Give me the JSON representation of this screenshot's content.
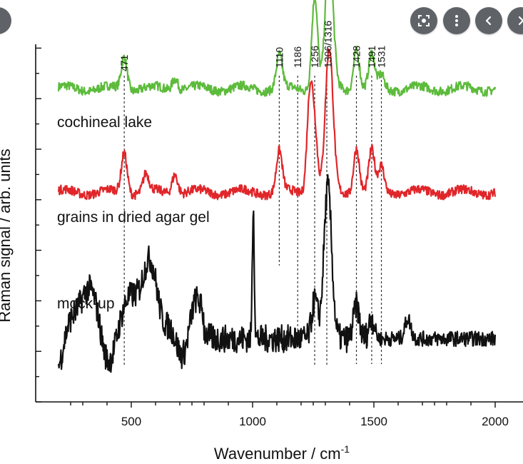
{
  "toolbar": {
    "lens_icon": "lens-search-icon",
    "more_icon": "more-vert-icon",
    "prev_icon": "chevron-left-icon",
    "next_icon": "chevron-right-icon"
  },
  "chart_data": {
    "type": "line",
    "xlabel": "Wavenumber / cm",
    "xlabel_superscript": "-1",
    "ylabel": "Raman signal / arb. units",
    "xlim": [
      70,
      2040
    ],
    "xticks": [
      500,
      1000,
      1500,
      2000
    ],
    "grid": false,
    "peak_markers": [
      471,
      1110,
      1186,
      1256,
      1306,
      1428,
      1491,
      1531
    ],
    "peak_labels": [
      {
        "text": "471",
        "x": 471
      },
      {
        "text": "1110",
        "x": 1110
      },
      {
        "text": "1186",
        "x": 1186
      },
      {
        "text": "1256",
        "x": 1256
      },
      {
        "text": "1306/1316",
        "x": 1311
      },
      {
        "text": "1428",
        "x": 1428
      },
      {
        "text": "1491",
        "x": 1491
      },
      {
        "text": "1531",
        "x": 1531
      }
    ],
    "series": [
      {
        "name": "cochineal lake",
        "color": "#5dbb3c",
        "baseline": 12.4,
        "peaks": [
          [
            471,
            1.3
          ],
          [
            680,
            0.5
          ],
          [
            1110,
            1.3
          ],
          [
            1256,
            3.7
          ],
          [
            1316,
            5.2
          ],
          [
            1428,
            1.6
          ],
          [
            1491,
            1.3
          ],
          [
            1531,
            0.5
          ]
        ]
      },
      {
        "name": "grains in dried agar gel",
        "color": "#e0262a",
        "baseline": 8.3,
        "peaks": [
          [
            471,
            1.6
          ],
          [
            560,
            0.7
          ],
          [
            680,
            0.8
          ],
          [
            1110,
            1.6
          ],
          [
            1236,
            3.8
          ],
          [
            1256,
            2.3
          ],
          [
            1316,
            5.6
          ],
          [
            1428,
            1.8
          ],
          [
            1491,
            1.6
          ],
          [
            1531,
            1.0
          ]
        ]
      },
      {
        "name": "mock-up",
        "color": "#111111",
        "baseline": 2.5,
        "peaks": [
          [
            300,
            1.6
          ],
          [
            500,
            2.5
          ],
          [
            590,
            2.2
          ],
          [
            750,
            1.3
          ],
          [
            1003,
            5.3
          ],
          [
            1256,
            1.5
          ],
          [
            1310,
            6.0
          ],
          [
            1428,
            1.3
          ],
          [
            1491,
            0.8
          ],
          [
            1640,
            0.8
          ]
        ]
      }
    ]
  }
}
